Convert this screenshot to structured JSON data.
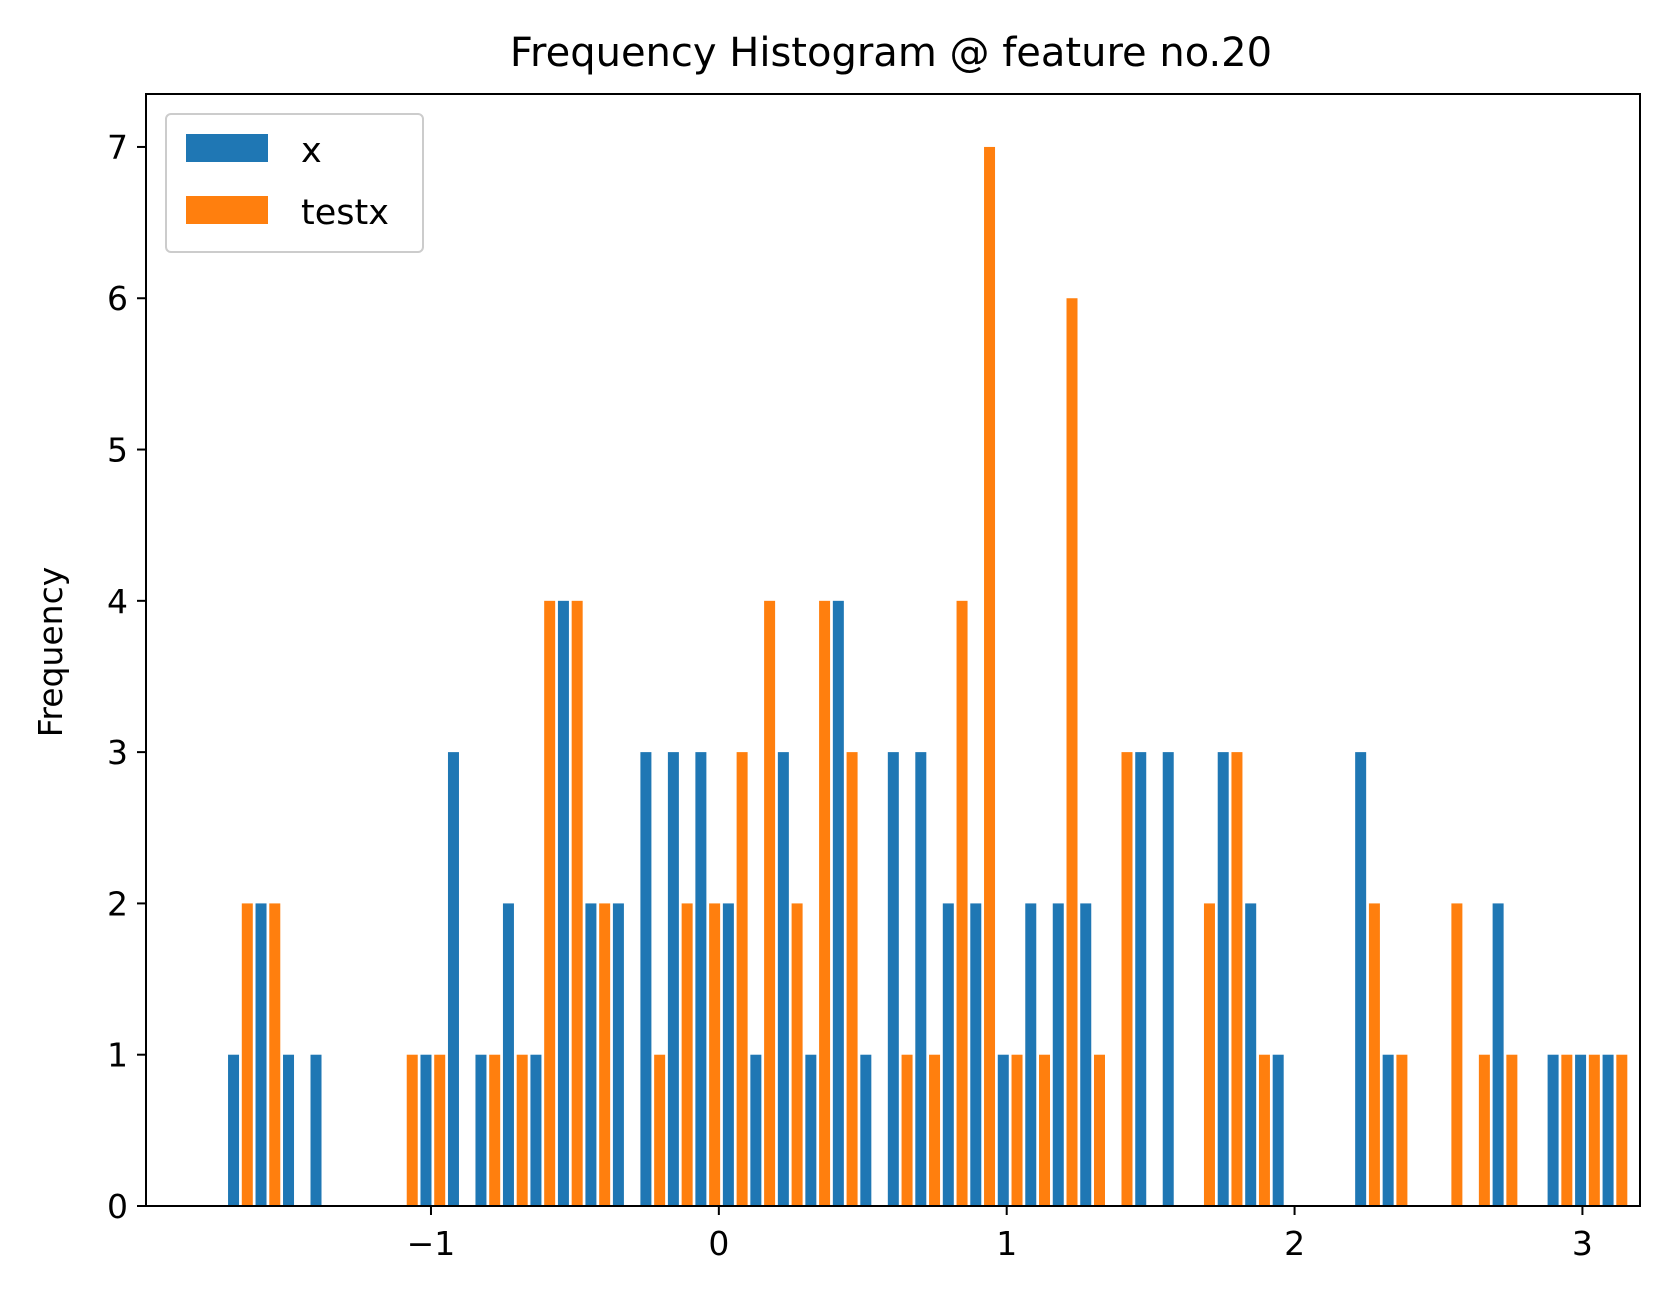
{
  "chart_data": {
    "type": "bar",
    "title": "Frequency Histogram @ feature no.20",
    "xlabel": "",
    "ylabel": "Frequency",
    "xlim": [
      -1.99,
      3.2
    ],
    "ylim": [
      0,
      7.35
    ],
    "x_ticks": [
      -1,
      0,
      1,
      2,
      3
    ],
    "x_tick_labels": [
      "−1",
      "0",
      "1",
      "2",
      "3"
    ],
    "y_ticks": [
      0,
      1,
      2,
      3,
      4,
      5,
      6,
      7
    ],
    "y_tick_labels": [
      "0",
      "1",
      "2",
      "3",
      "4",
      "5",
      "6",
      "7"
    ],
    "bin_start": -1.705,
    "bin_width": 0.0955,
    "legend_position": "upper-left",
    "series": [
      {
        "name": "x",
        "color": "#1f77b4",
        "values": [
          1,
          2,
          1,
          1,
          0,
          0,
          0,
          1,
          3,
          1,
          2,
          1,
          4,
          2,
          2,
          3,
          3,
          3,
          2,
          1,
          3,
          1,
          4,
          1,
          3,
          3,
          2,
          2,
          1,
          2,
          2,
          2,
          0,
          3,
          3,
          0,
          3,
          2,
          1,
          0,
          0,
          3,
          1,
          0,
          0,
          0,
          2,
          0,
          1,
          1,
          1
        ]
      },
      {
        "name": "testx",
        "color": "#ff7f0e",
        "values": [
          2,
          2,
          0,
          0,
          0,
          0,
          1,
          1,
          0,
          1,
          1,
          4,
          4,
          2,
          0,
          1,
          2,
          2,
          3,
          4,
          2,
          4,
          3,
          0,
          1,
          1,
          4,
          7,
          1,
          1,
          6,
          1,
          3,
          0,
          0,
          2,
          3,
          1,
          0,
          0,
          0,
          2,
          1,
          0,
          2,
          1,
          1,
          0,
          1,
          1,
          1
        ]
      }
    ]
  }
}
